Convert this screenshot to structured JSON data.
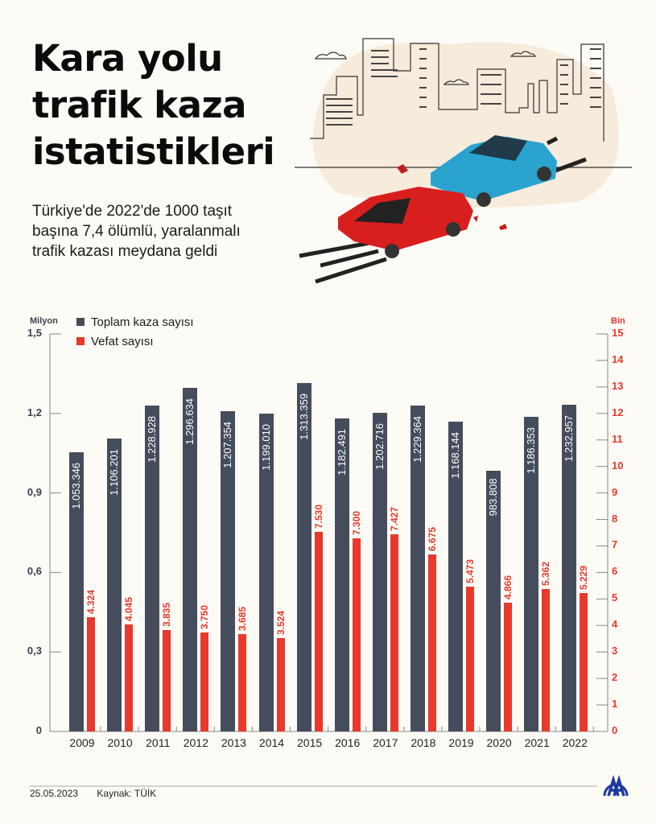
{
  "header": {
    "title_lines": [
      "Kara yolu",
      "trafik kaza",
      "istatistikleri"
    ],
    "subtitle_lines": [
      "Türkiye'de 2022'de 1000 taşıt",
      "başına 7,4 ölümlü, yaralanmalı",
      "trafik kazası meydana geldi"
    ]
  },
  "illustration": {
    "icon": "car-crash-city-illustration"
  },
  "colors": {
    "background": "#fdfbf5",
    "accidents": "#454c5c",
    "deaths": "#e8392c",
    "axis": "#888888"
  },
  "chart_data": {
    "type": "bar",
    "title": "Kara yolu trafik kaza istatistikleri",
    "categories": [
      "2009",
      "2010",
      "2011",
      "2012",
      "2013",
      "2014",
      "2015",
      "2016",
      "2017",
      "2018",
      "2019",
      "2020",
      "2021",
      "2022"
    ],
    "series": [
      {
        "name": "Toplam kaza sayısı",
        "axis": "left",
        "unit": "Milyon",
        "values": [
          1053346,
          1106201,
          1228928,
          1296634,
          1207354,
          1199010,
          1313359,
          1182491,
          1202716,
          1229364,
          1168144,
          983808,
          1186353,
          1232957
        ],
        "labels": [
          "1.053.346",
          "1.106.201",
          "1.228.928",
          "1.296.634",
          "1.207.354",
          "1.199.010",
          "1.313.359",
          "1.182.491",
          "1.202.716",
          "1.229.364",
          "1.168.144",
          "983.808",
          "1.186.353",
          "1.232.957"
        ]
      },
      {
        "name": "Vefat sayısı",
        "axis": "right",
        "unit": "Bin",
        "values": [
          4324,
          4045,
          3835,
          3750,
          3685,
          3524,
          7530,
          7300,
          7427,
          6675,
          5473,
          4866,
          5362,
          5229
        ],
        "labels": [
          "4.324",
          "4.045",
          "3.835",
          "3.750",
          "3.685",
          "3.524",
          "7.530",
          "7.300",
          "7.427",
          "6.675",
          "5.473",
          "4.866",
          "5.362",
          "5.229"
        ]
      }
    ],
    "ylabel_left": "Milyon",
    "ylabel_right": "Bin",
    "ylim_left": [
      0,
      1.5
    ],
    "ylim_right": [
      0,
      15
    ],
    "yticks_left": [
      "0",
      "0,3",
      "0,6",
      "0,9",
      "1,2",
      "1,5"
    ],
    "yticks_right": [
      "0",
      "1",
      "2",
      "3",
      "4",
      "5",
      "6",
      "7",
      "8",
      "9",
      "10",
      "11",
      "12",
      "13",
      "14",
      "15"
    ],
    "legend_position": "top-left",
    "grid": false
  },
  "footer": {
    "date": "25.05.2023",
    "source": "Kaynak: TÜİK",
    "logo": "AA"
  }
}
